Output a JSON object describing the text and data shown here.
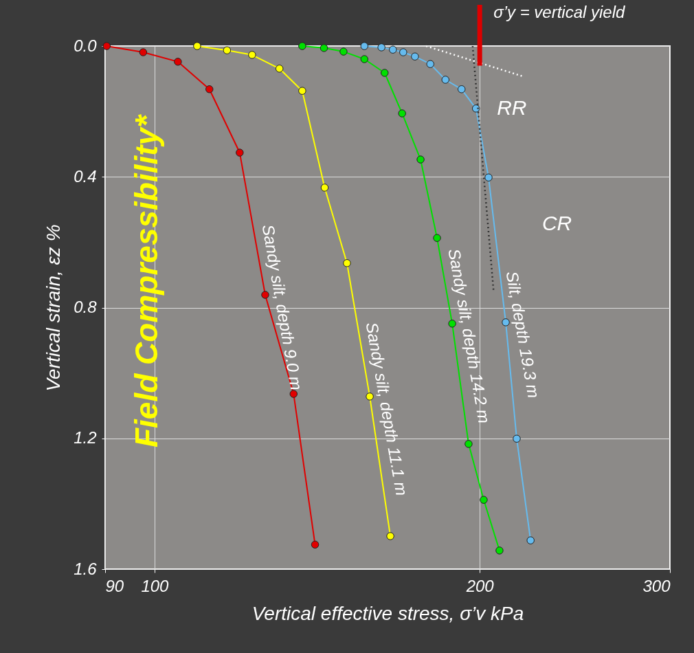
{
  "chart_data": {
    "type": "line",
    "xlabel": "Vertical effective stress, σ’v  kPa",
    "ylabel": "Vertical strain, εz %",
    "log": "x",
    "xlim": [
      90,
      300
    ],
    "xticks": [
      90,
      100,
      200,
      300
    ],
    "ylim": [
      1.6,
      0
    ],
    "yticks": [
      {
        "value": 0,
        "label": "0.0"
      },
      0.4,
      0.8,
      1.2,
      1.6
    ],
    "grid": true,
    "marker": "circle",
    "line_style": "solid",
    "series": [
      {
        "name": "Sandy silt, depth 9.0 m",
        "color": "#e00000",
        "x": [
          90.3,
          97.6,
          105.1,
          112.4,
          119.9,
          126.6,
          134.5,
          140.8
        ],
        "values": [
          0,
          0.019,
          0.048,
          0.132,
          0.326,
          0.761,
          1.064,
          1.525
        ]
      },
      {
        "name": "Sandy silt, depth 11.1 m",
        "color": "#ffff00",
        "x": [
          109.5,
          116.7,
          123.1,
          130.5,
          137.0,
          143.7,
          150.7,
          158.2,
          165.3
        ],
        "values": [
          0,
          0.013,
          0.027,
          0.069,
          0.137,
          0.433,
          0.664,
          1.072,
          1.499
        ]
      },
      {
        "name": "Sandy silt, depth 14.2 m",
        "color": "#00e000",
        "x": [
          137.0,
          143.5,
          149.6,
          156.4,
          163.3,
          169.5,
          176.3,
          182.6,
          188.6,
          195.3,
          201.7,
          208.6
        ],
        "values": [
          0,
          0.006,
          0.017,
          0.04,
          0.082,
          0.206,
          0.347,
          0.587,
          0.849,
          1.217,
          1.388,
          1.543
        ]
      },
      {
        "name": "Silt, depth 19.3 m",
        "color": "#66bbee",
        "x": [
          156.4,
          162.2,
          166.2,
          169.9,
          174.2,
          180.0,
          185.9,
          192.4,
          198.4,
          203.8,
          211.4,
          216.4,
          222.9
        ],
        "values": [
          0,
          0.004,
          0.011,
          0.019,
          0.032,
          0.055,
          0.103,
          0.132,
          0.191,
          0.402,
          0.845,
          1.201,
          1.512
        ]
      },
      {
        "type": "line",
        "color": "#ffffff",
        "line_style": "dotted",
        "marker": "none",
        "x": [
          178.4,
          218.9
        ],
        "values": [
          0,
          0.092
        ]
      },
      {
        "type": "line",
        "color": "#333333",
        "line_style": "dotted",
        "marker": "none",
        "x": [
          197.0,
          206.0
        ],
        "values": [
          0,
          0.75
        ]
      }
    ],
    "annotations": [
      "Field Compressibility*",
      {
        "text": "σ’y = vertical yield",
        "x": 200,
        "y": 0.06
      },
      "RR",
      "CR"
    ]
  }
}
